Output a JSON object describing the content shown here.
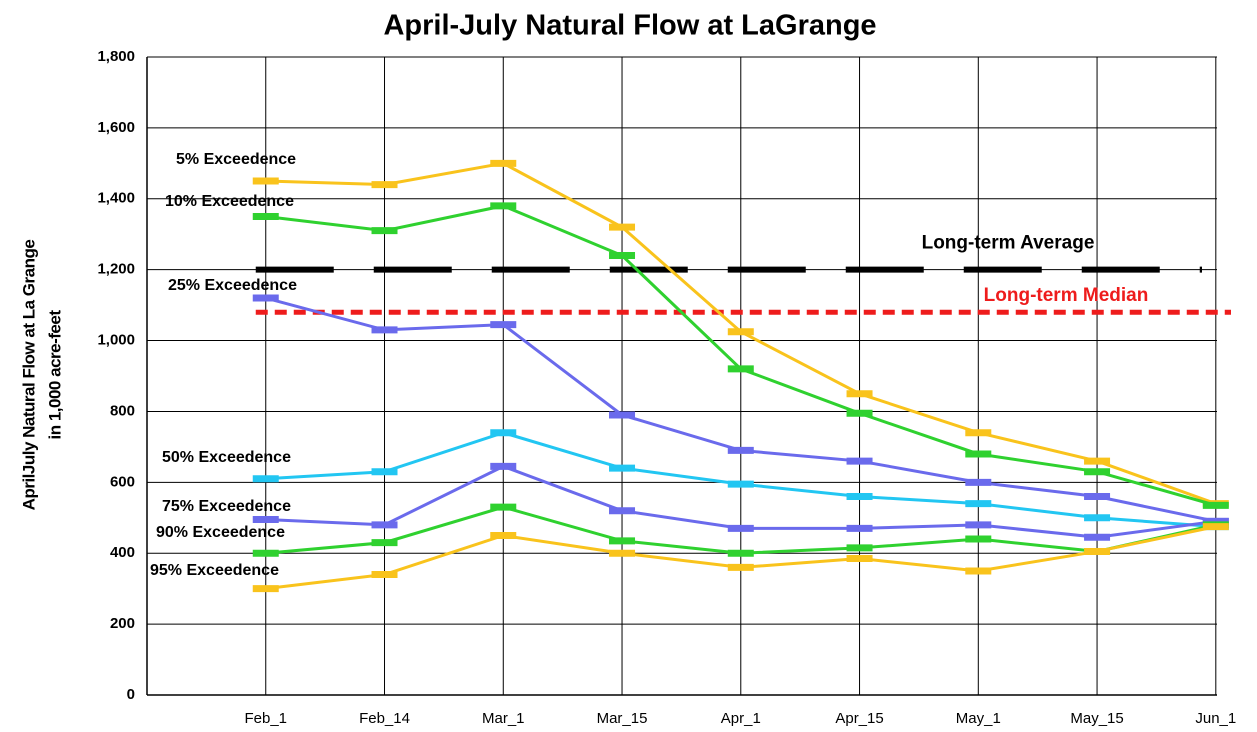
{
  "chart_data": {
    "type": "line",
    "title": "April-July Natural Flow at LaGrange",
    "y_label": [
      "AprilJuly Natural Flow at La Grange",
      "in 1,000 acre-feet"
    ],
    "categories": [
      "Feb_1",
      "Feb_14",
      "Mar_1",
      "Mar_15",
      "Apr_1",
      "Apr_15",
      "May_1",
      "May_15",
      "Jun_1"
    ],
    "series": [
      {
        "name": "5% Exceedence",
        "color": "#f9c31c",
        "values": [
          1450,
          1440,
          1500,
          1320,
          1025,
          850,
          740,
          660,
          540
        ]
      },
      {
        "name": "10% Exceedence",
        "color": "#2fd12f",
        "values": [
          1350,
          1310,
          1380,
          1240,
          920,
          795,
          680,
          630,
          535
        ]
      },
      {
        "name": "25% Exceedence",
        "color": "#6a6aec",
        "values": [
          1120,
          1030,
          1045,
          790,
          690,
          660,
          600,
          560,
          490
        ]
      },
      {
        "name": "50% Exceedence",
        "color": "#22c6f2",
        "values": [
          610,
          630,
          740,
          640,
          595,
          560,
          540,
          500,
          475
        ]
      },
      {
        "name": "75% Exceedence",
        "color": "#6a6aec",
        "values": [
          495,
          480,
          645,
          520,
          470,
          470,
          480,
          445,
          490
        ]
      },
      {
        "name": "90% Exceedence",
        "color": "#2fd12f",
        "values": [
          400,
          430,
          530,
          435,
          400,
          415,
          440,
          405,
          480
        ]
      },
      {
        "name": "95% Exceedence",
        "color": "#f9c31c",
        "values": [
          300,
          340,
          450,
          400,
          360,
          385,
          350,
          405,
          475
        ]
      }
    ],
    "reference_lines": [
      {
        "name": "Long-term Average",
        "value": 1200,
        "color": "#000000"
      },
      {
        "name": "Long-term Median",
        "value": 1080,
        "color": "#ee1c1c"
      }
    ],
    "ylim": [
      0,
      1800
    ],
    "yticks": [
      0,
      200,
      400,
      600,
      800,
      {
        "value": 1000,
        "label": "1,000"
      },
      {
        "value": 1200,
        "label": "1,200"
      },
      {
        "value": 1400,
        "label": "1,400"
      },
      {
        "value": 1600,
        "label": "1,600"
      },
      {
        "value": 1800,
        "label": "1,800"
      }
    ],
    "grid": true
  }
}
